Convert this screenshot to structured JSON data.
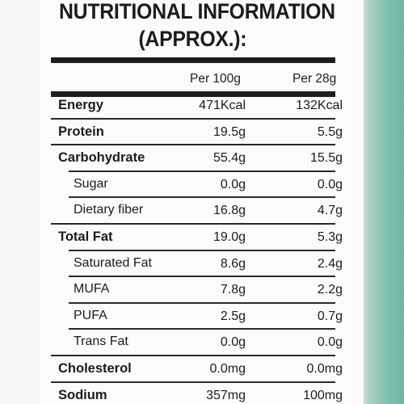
{
  "label": {
    "title_line1": "NUTRITIONAL INFORMATION",
    "title_line2": "(APPROX.):",
    "column_headers": [
      "Per 100g",
      "Per 28g"
    ],
    "rows": [
      {
        "name": "Energy",
        "per_100g": "471Kcal",
        "per_28g": "132Kcal",
        "bold": true
      },
      {
        "name": "Protein",
        "per_100g": "19.5g",
        "per_28g": "5.5g",
        "bold": true
      },
      {
        "name": "Carbohydrate",
        "per_100g": "55.4g",
        "per_28g": "15.5g",
        "bold": true
      },
      {
        "name": "Sugar",
        "per_100g": "0.0g",
        "per_28g": "0.0g",
        "bold": false
      },
      {
        "name": "Dietary fiber",
        "per_100g": "16.8g",
        "per_28g": "4.7g",
        "bold": false
      },
      {
        "name": "Total Fat",
        "per_100g": "19.0g",
        "per_28g": "5.3g",
        "bold": true
      },
      {
        "name": "Saturated Fat",
        "per_100g": "8.6g",
        "per_28g": "2.4g",
        "bold": false
      },
      {
        "name": "MUFA",
        "per_100g": "7.8g",
        "per_28g": "2.2g",
        "bold": false
      },
      {
        "name": "PUFA",
        "per_100g": "2.5g",
        "per_28g": "0.7g",
        "bold": false
      },
      {
        "name": "Trans Fat",
        "per_100g": "0.0g",
        "per_28g": "0.0g",
        "bold": false
      },
      {
        "name": "Cholesterol",
        "per_100g": "0.0mg",
        "per_28g": "0.0mg",
        "bold": true
      },
      {
        "name": "Sodium",
        "per_100g": "357mg",
        "per_28g": "100mg",
        "bold": true
      }
    ]
  },
  "colors": {
    "ink": "#1c1c1c",
    "rule": "#1e1e1e",
    "package_accent": "#7fc0ad",
    "background": "#fbfbfa"
  }
}
